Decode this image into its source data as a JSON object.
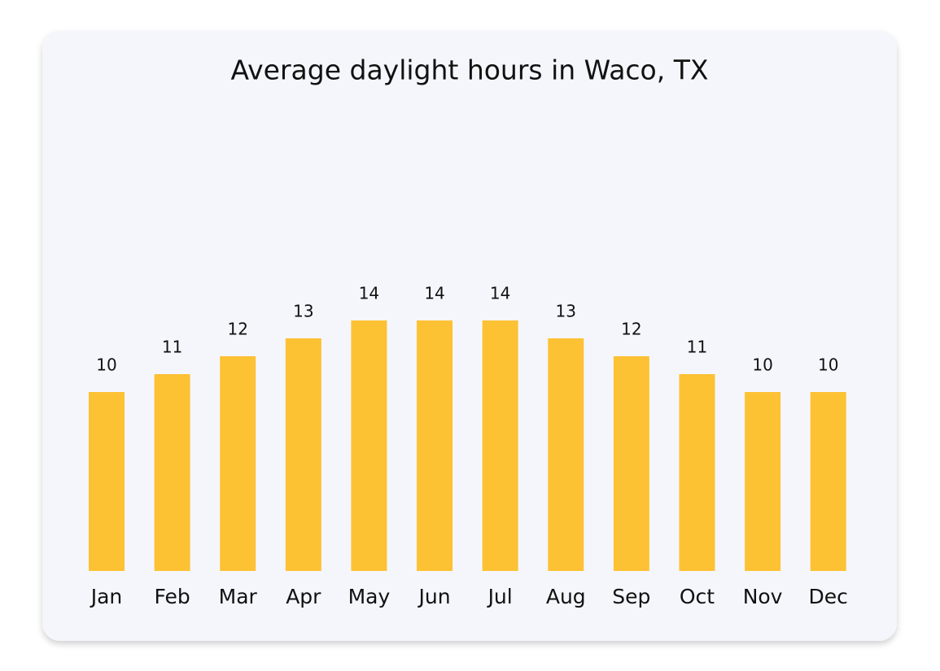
{
  "chart_data": {
    "type": "bar",
    "title": "Average daylight hours in Waco, TX",
    "categories": [
      "Jan",
      "Feb",
      "Mar",
      "Apr",
      "May",
      "Jun",
      "Jul",
      "Aug",
      "Sep",
      "Oct",
      "Nov",
      "Dec"
    ],
    "values": [
      10,
      11,
      12,
      13,
      14,
      14,
      14,
      13,
      12,
      11,
      10,
      10
    ],
    "color": "#fdc134",
    "ylim": [
      0,
      25
    ]
  }
}
